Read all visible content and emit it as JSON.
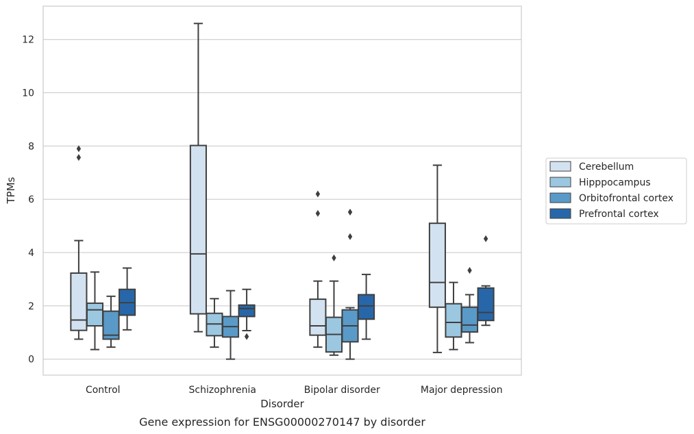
{
  "caption": "Gene expression for ENSG00000270147 by disorder",
  "chart_data": {
    "type": "box",
    "xlabel": "Disorder",
    "ylabel": "TPMs",
    "ylim": [
      -0.6,
      13.25
    ],
    "yticks": [
      0,
      2,
      4,
      6,
      8,
      10,
      12
    ],
    "ytick_labels": [
      "0",
      "2",
      "4",
      "6",
      "8",
      "10",
      "12"
    ],
    "grid": "horizontal",
    "legend_position": "right",
    "categories": [
      "Control",
      "Schizophrenia",
      "Bipolar disorder",
      "Major depression"
    ],
    "series": [
      {
        "name": "Cerebellum",
        "color": "#d3e2f0",
        "boxes": [
          {
            "whislo": 0.75,
            "q1": 1.08,
            "med": 1.47,
            "q3": 3.23,
            "whishi": 4.45,
            "fliers": [
              7.57,
              7.9
            ]
          },
          {
            "whislo": 1.03,
            "q1": 1.7,
            "med": 3.95,
            "q3": 8.02,
            "whishi": 12.6,
            "fliers": []
          },
          {
            "whislo": 0.45,
            "q1": 0.9,
            "med": 1.25,
            "q3": 2.25,
            "whishi": 2.93,
            "fliers": [
              5.47,
              6.2
            ]
          },
          {
            "whislo": 0.25,
            "q1": 1.95,
            "med": 2.88,
            "q3": 5.1,
            "whishi": 7.28,
            "fliers": []
          }
        ]
      },
      {
        "name": "Hipppocampus",
        "color": "#9cc7e0",
        "boxes": [
          {
            "whislo": 0.36,
            "q1": 1.25,
            "med": 1.85,
            "q3": 2.1,
            "whishi": 3.27,
            "fliers": []
          },
          {
            "whislo": 0.45,
            "q1": 0.88,
            "med": 1.32,
            "q3": 1.72,
            "whishi": 2.27,
            "fliers": []
          },
          {
            "whislo": 0.15,
            "q1": 0.27,
            "med": 0.93,
            "q3": 1.57,
            "whishi": 2.93,
            "fliers": [
              3.8
            ]
          },
          {
            "whislo": 0.36,
            "q1": 0.83,
            "med": 1.38,
            "q3": 2.08,
            "whishi": 2.88,
            "fliers": []
          }
        ]
      },
      {
        "name": "Orbitofrontal cortex",
        "color": "#5a9ac8",
        "boxes": [
          {
            "whislo": 0.45,
            "q1": 0.75,
            "med": 0.9,
            "q3": 1.8,
            "whishi": 2.36,
            "fliers": []
          },
          {
            "whislo": 0.0,
            "q1": 0.83,
            "med": 1.22,
            "q3": 1.6,
            "whishi": 2.57,
            "fliers": []
          },
          {
            "whislo": 0.0,
            "q1": 0.65,
            "med": 1.25,
            "q3": 1.85,
            "whishi": 1.93,
            "fliers": [
              4.6,
              5.52
            ]
          },
          {
            "whislo": 0.62,
            "q1": 1.02,
            "med": 1.28,
            "q3": 1.95,
            "whishi": 2.42,
            "fliers": [
              3.33
            ]
          }
        ]
      },
      {
        "name": "Prefrontal cortex",
        "color": "#2767a9",
        "boxes": [
          {
            "whislo": 1.1,
            "q1": 1.65,
            "med": 2.12,
            "q3": 2.62,
            "whishi": 3.42,
            "fliers": []
          },
          {
            "whislo": 1.07,
            "q1": 1.6,
            "med": 1.9,
            "q3": 2.03,
            "whishi": 2.62,
            "fliers": [
              0.85
            ]
          },
          {
            "whislo": 0.75,
            "q1": 1.5,
            "med": 2.0,
            "q3": 2.42,
            "whishi": 3.18,
            "fliers": []
          },
          {
            "whislo": 1.27,
            "q1": 1.45,
            "med": 1.75,
            "q3": 2.67,
            "whishi": 2.75,
            "fliers": [
              4.52
            ]
          }
        ]
      }
    ]
  }
}
